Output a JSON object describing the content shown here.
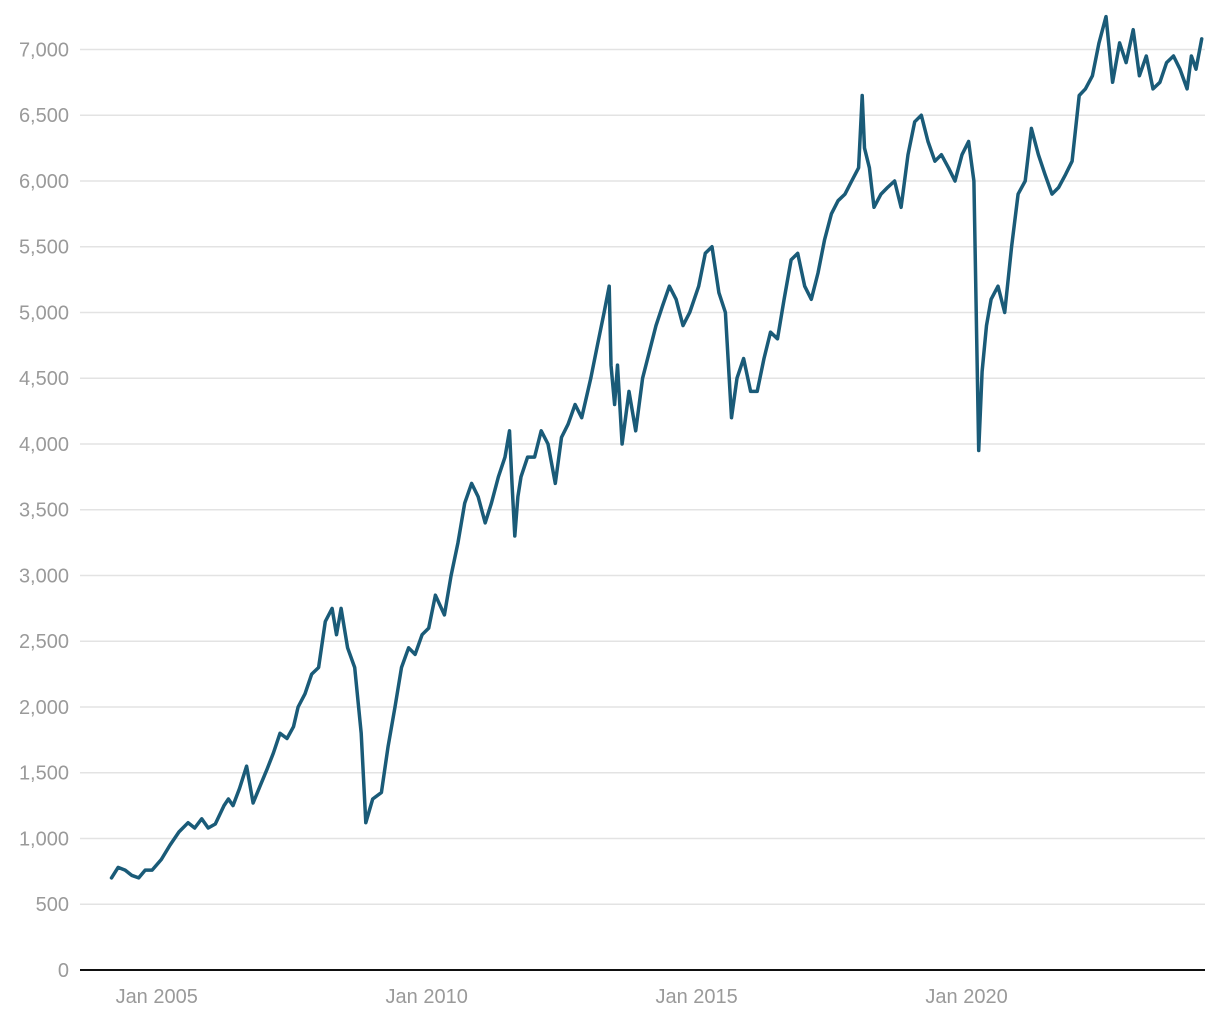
{
  "colors": {
    "line": "#1a5b78",
    "grid": "#e3e3e3",
    "axis": "#111111",
    "tick_text": "#9a9a9a",
    "background": "#ffffff"
  },
  "chart_data": {
    "type": "line",
    "title": "",
    "xlabel": "",
    "ylabel": "",
    "legend": "none",
    "grid": "horizontal",
    "xlim": [
      "2003-08-01",
      "2024-06-01"
    ],
    "ylim": [
      0,
      7300
    ],
    "yticks": [
      0,
      500,
      1000,
      1500,
      2000,
      2500,
      3000,
      3500,
      4000,
      4500,
      5000,
      5500,
      6000,
      6500,
      7000
    ],
    "ytick_labels": [
      "0",
      "500",
      "1,000",
      "1,500",
      "2,000",
      "2,500",
      "3,000",
      "3,500",
      "4,000",
      "4,500",
      "5,000",
      "5,500",
      "6,000",
      "6,500",
      "7,000"
    ],
    "xticks": [
      "2005-01-01",
      "2010-01-01",
      "2015-01-01",
      "2020-01-01"
    ],
    "xtick_labels": [
      "Jan 2005",
      "Jan 2010",
      "Jan 2015",
      "Jan 2020"
    ],
    "series": [
      {
        "x": [
          "2004-03-01",
          "2004-04-15",
          "2004-06-01",
          "2004-07-15",
          "2004-09-01",
          "2004-10-15",
          "2004-12-01",
          "2005-02-01",
          "2005-04-01",
          "2005-06-01",
          "2005-08-01",
          "2005-09-15",
          "2005-11-01",
          "2005-12-15",
          "2006-02-01",
          "2006-04-01",
          "2006-05-01",
          "2006-06-01",
          "2006-07-15",
          "2006-09-01",
          "2006-10-15",
          "2006-12-01",
          "2007-01-15",
          "2007-03-01",
          "2007-04-15",
          "2007-06-01",
          "2007-07-15",
          "2007-08-15",
          "2007-10-01",
          "2007-11-15",
          "2008-01-01",
          "2008-02-15",
          "2008-04-01",
          "2008-05-01",
          "2008-06-01",
          "2008-07-15",
          "2008-09-01",
          "2008-10-15",
          "2008-11-15",
          "2009-01-01",
          "2009-03-01",
          "2009-04-15",
          "2009-06-01",
          "2009-07-15",
          "2009-09-01",
          "2009-10-15",
          "2009-12-01",
          "2010-01-15",
          "2010-03-01",
          "2010-05-01",
          "2010-06-15",
          "2010-08-01",
          "2010-09-15",
          "2010-11-01",
          "2010-12-15",
          "2011-02-01",
          "2011-03-15",
          "2011-05-01",
          "2011-06-15",
          "2011-07-15",
          "2011-08-01",
          "2011-08-20",
          "2011-09-10",
          "2011-10-01",
          "2011-11-15",
          "2012-01-01",
          "2012-02-15",
          "2012-04-01",
          "2012-05-20",
          "2012-07-01",
          "2012-08-15",
          "2012-10-01",
          "2012-11-15",
          "2013-01-15",
          "2013-03-01",
          "2013-04-15",
          "2013-05-20",
          "2013-06-01",
          "2013-06-25",
          "2013-07-15",
          "2013-08-15",
          "2013-10-01",
          "2013-11-15",
          "2014-01-01",
          "2014-02-15",
          "2014-04-01",
          "2014-05-15",
          "2014-07-01",
          "2014-08-15",
          "2014-10-01",
          "2014-11-15",
          "2015-01-15",
          "2015-03-01",
          "2015-04-15",
          "2015-06-01",
          "2015-07-15",
          "2015-08-25",
          "2015-10-01",
          "2015-11-15",
          "2016-01-01",
          "2016-02-15",
          "2016-04-01",
          "2016-05-15",
          "2016-07-01",
          "2016-08-15",
          "2016-10-01",
          "2016-11-15",
          "2017-01-01",
          "2017-02-15",
          "2017-04-01",
          "2017-05-15",
          "2017-07-01",
          "2017-08-15",
          "2017-10-01",
          "2017-11-15",
          "2018-01-01",
          "2018-01-25",
          "2018-02-10",
          "2018-03-15",
          "2018-04-15",
          "2018-06-01",
          "2018-07-15",
          "2018-09-01",
          "2018-10-15",
          "2018-12-01",
          "2019-01-15",
          "2019-03-01",
          "2019-04-15",
          "2019-06-01",
          "2019-07-15",
          "2019-09-01",
          "2019-10-15",
          "2019-12-01",
          "2020-01-15",
          "2020-02-20",
          "2020-03-10",
          "2020-03-23",
          "2020-04-15",
          "2020-05-15",
          "2020-06-15",
          "2020-08-01",
          "2020-09-15",
          "2020-11-01",
          "2020-12-15",
          "2021-02-01",
          "2021-03-15",
          "2021-05-01",
          "2021-06-15",
          "2021-08-01",
          "2021-09-15",
          "2021-11-01",
          "2021-12-15",
          "2022-02-01",
          "2022-03-15",
          "2022-05-01",
          "2022-06-15",
          "2022-08-01",
          "2022-09-15",
          "2022-11-01",
          "2022-12-15",
          "2023-02-01",
          "2023-03-15",
          "2023-05-01",
          "2023-06-15",
          "2023-08-01",
          "2023-09-15",
          "2023-11-01",
          "2023-12-15",
          "2024-02-01",
          "2024-03-01",
          "2024-04-01",
          "2024-05-10"
        ],
        "y": [
          700,
          780,
          760,
          720,
          700,
          760,
          760,
          840,
          950,
          1050,
          1120,
          1080,
          1150,
          1080,
          1110,
          1250,
          1300,
          1250,
          1380,
          1550,
          1270,
          1400,
          1520,
          1650,
          1800,
          1760,
          1850,
          2000,
          2100,
          2250,
          2300,
          2650,
          2750,
          2550,
          2750,
          2450,
          2300,
          1800,
          1120,
          1300,
          1350,
          1700,
          2000,
          2300,
          2450,
          2400,
          2550,
          2600,
          2850,
          2700,
          3000,
          3250,
          3550,
          3700,
          3600,
          3400,
          3550,
          3750,
          3900,
          4100,
          3700,
          3300,
          3600,
          3750,
          3900,
          3900,
          4100,
          4000,
          3700,
          4050,
          4150,
          4300,
          4200,
          4500,
          4750,
          5000,
          5200,
          4600,
          4300,
          4600,
          4000,
          4400,
          4100,
          4500,
          4700,
          4900,
          5050,
          5200,
          5100,
          4900,
          5000,
          5200,
          5450,
          5500,
          5150,
          5000,
          4200,
          4500,
          4650,
          4400,
          4400,
          4650,
          4850,
          4800,
          5100,
          5400,
          5450,
          5200,
          5100,
          5300,
          5550,
          5750,
          5850,
          5900,
          6000,
          6100,
          6650,
          6250,
          6100,
          5800,
          5900,
          5950,
          6000,
          5800,
          6200,
          6450,
          6500,
          6300,
          6150,
          6200,
          6100,
          6000,
          6200,
          6300,
          6000,
          4800,
          3950,
          4550,
          4900,
          5100,
          5200,
          5000,
          5500,
          5900,
          6000,
          6400,
          6200,
          6050,
          5900,
          5950,
          6050,
          6150,
          6650,
          6700,
          6800,
          7050,
          7250,
          6750,
          7050,
          6900,
          7150,
          6800,
          6950,
          6700,
          6750,
          6900,
          6950,
          6850,
          6700,
          6950,
          6850,
          7080
        ]
      }
    ]
  }
}
